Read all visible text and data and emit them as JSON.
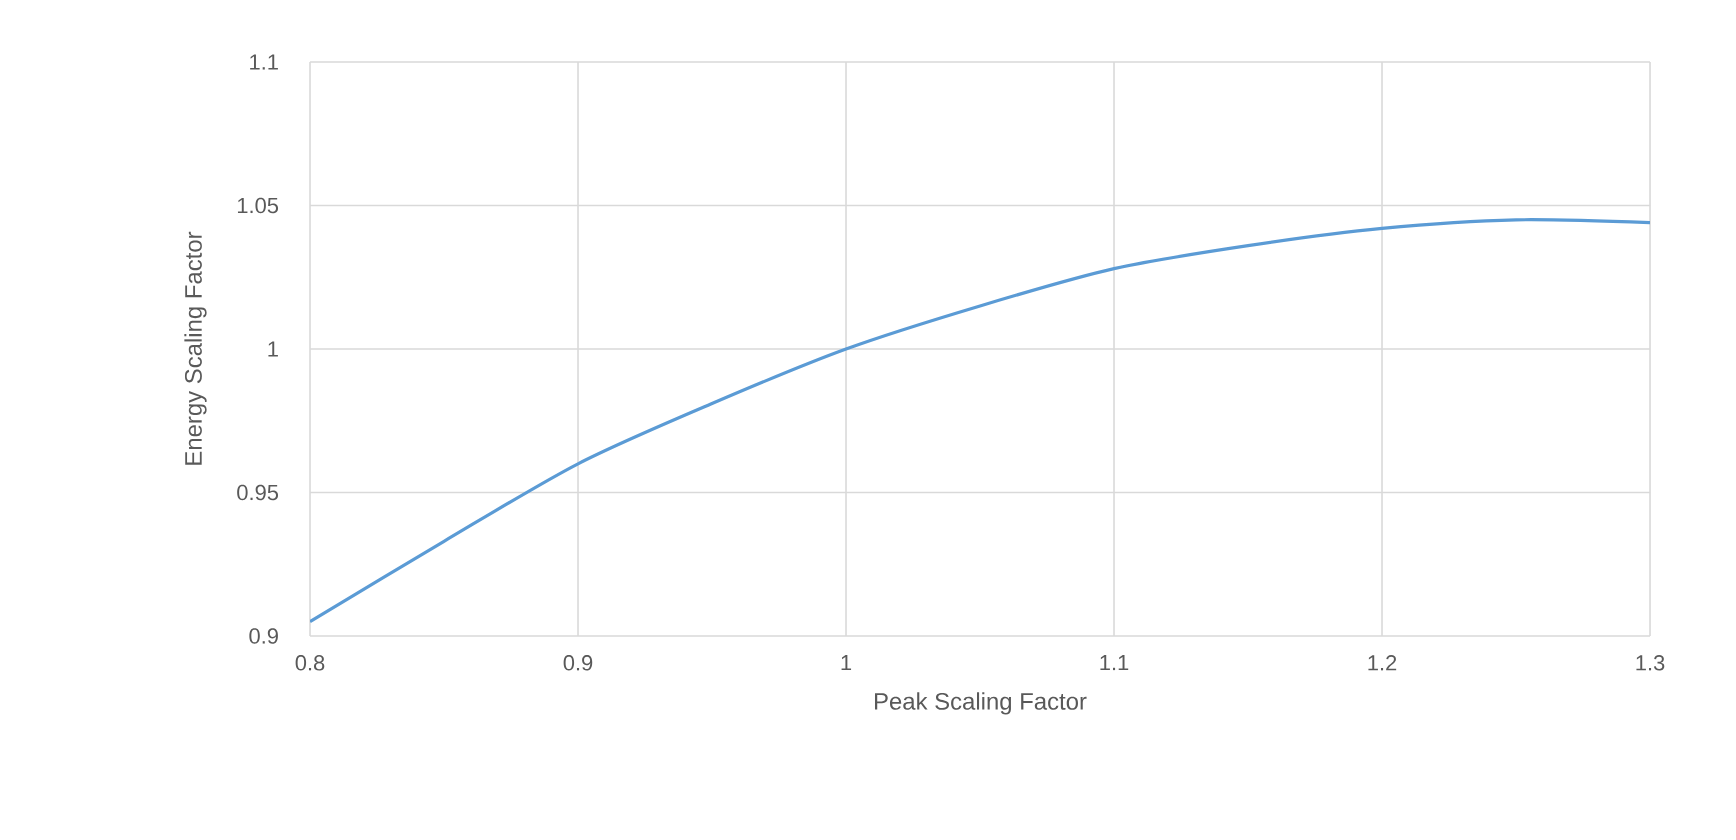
{
  "chart_data": {
    "type": "line",
    "xlabel": "Peak Scaling Factor",
    "ylabel": "Energy Scaling Factor",
    "x": [
      0.8,
      0.85,
      0.9,
      0.95,
      1.0,
      1.05,
      1.1,
      1.15,
      1.2,
      1.25,
      1.3
    ],
    "series": [
      {
        "color": "#5b9bd5",
        "values": [
          0.905,
          0.933,
          0.96,
          0.981,
          1.0,
          1.015,
          1.028,
          1.036,
          1.042,
          1.045,
          1.044
        ]
      }
    ],
    "xlim": [
      0.8,
      1.3
    ],
    "ylim": [
      0.9,
      1.1
    ],
    "xticks": [
      0.8,
      0.9,
      1,
      1.1,
      1.2,
      1.3
    ],
    "yticks": [
      0.9,
      0.95,
      1,
      1.05,
      1.1
    ],
    "grid": true,
    "marker": "none",
    "line_style": "solid"
  }
}
